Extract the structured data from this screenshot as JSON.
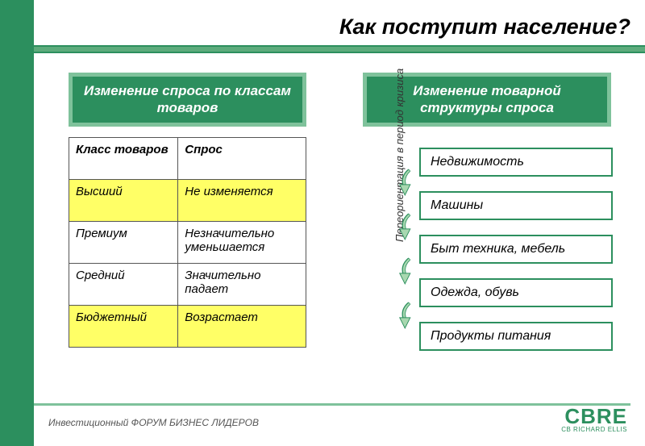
{
  "title": "Как поступит население?",
  "colors": {
    "brand_green": "#2c8f5e",
    "light_green": "#7fc29b",
    "mid_green": "#5dab7c",
    "highlight_yellow": "#ffff66",
    "arrow_fill": "#a8d8b0",
    "arrow_stroke": "#2c8f5e"
  },
  "left_box": {
    "title": "Изменение спроса по классам товаров",
    "table": {
      "columns": [
        "Класс товаров",
        "Спрос"
      ],
      "rows": [
        {
          "cells": [
            "Высший",
            "Не изменяется"
          ],
          "highlight": true
        },
        {
          "cells": [
            "Премиум",
            "Незначительно уменьшается"
          ],
          "highlight": false
        },
        {
          "cells": [
            "Средний",
            "Значительно падает"
          ],
          "highlight": false
        },
        {
          "cells": [
            "Бюджетный",
            "Возрастает"
          ],
          "highlight": true
        }
      ]
    }
  },
  "right_box": {
    "title": "Изменение товарной структуры спроса",
    "vertical_label": "Переориентация в период кризиса",
    "items": [
      "Недвижимость",
      "Машины",
      "Быт техника, мебель",
      "Одежда, обувь",
      "Продукты питания"
    ]
  },
  "footer": "Инвестиционный ФОРУМ БИЗНЕС ЛИДЕРОВ",
  "logo": {
    "main": "CBRE",
    "sub": "CB RICHARD ELLIS"
  }
}
